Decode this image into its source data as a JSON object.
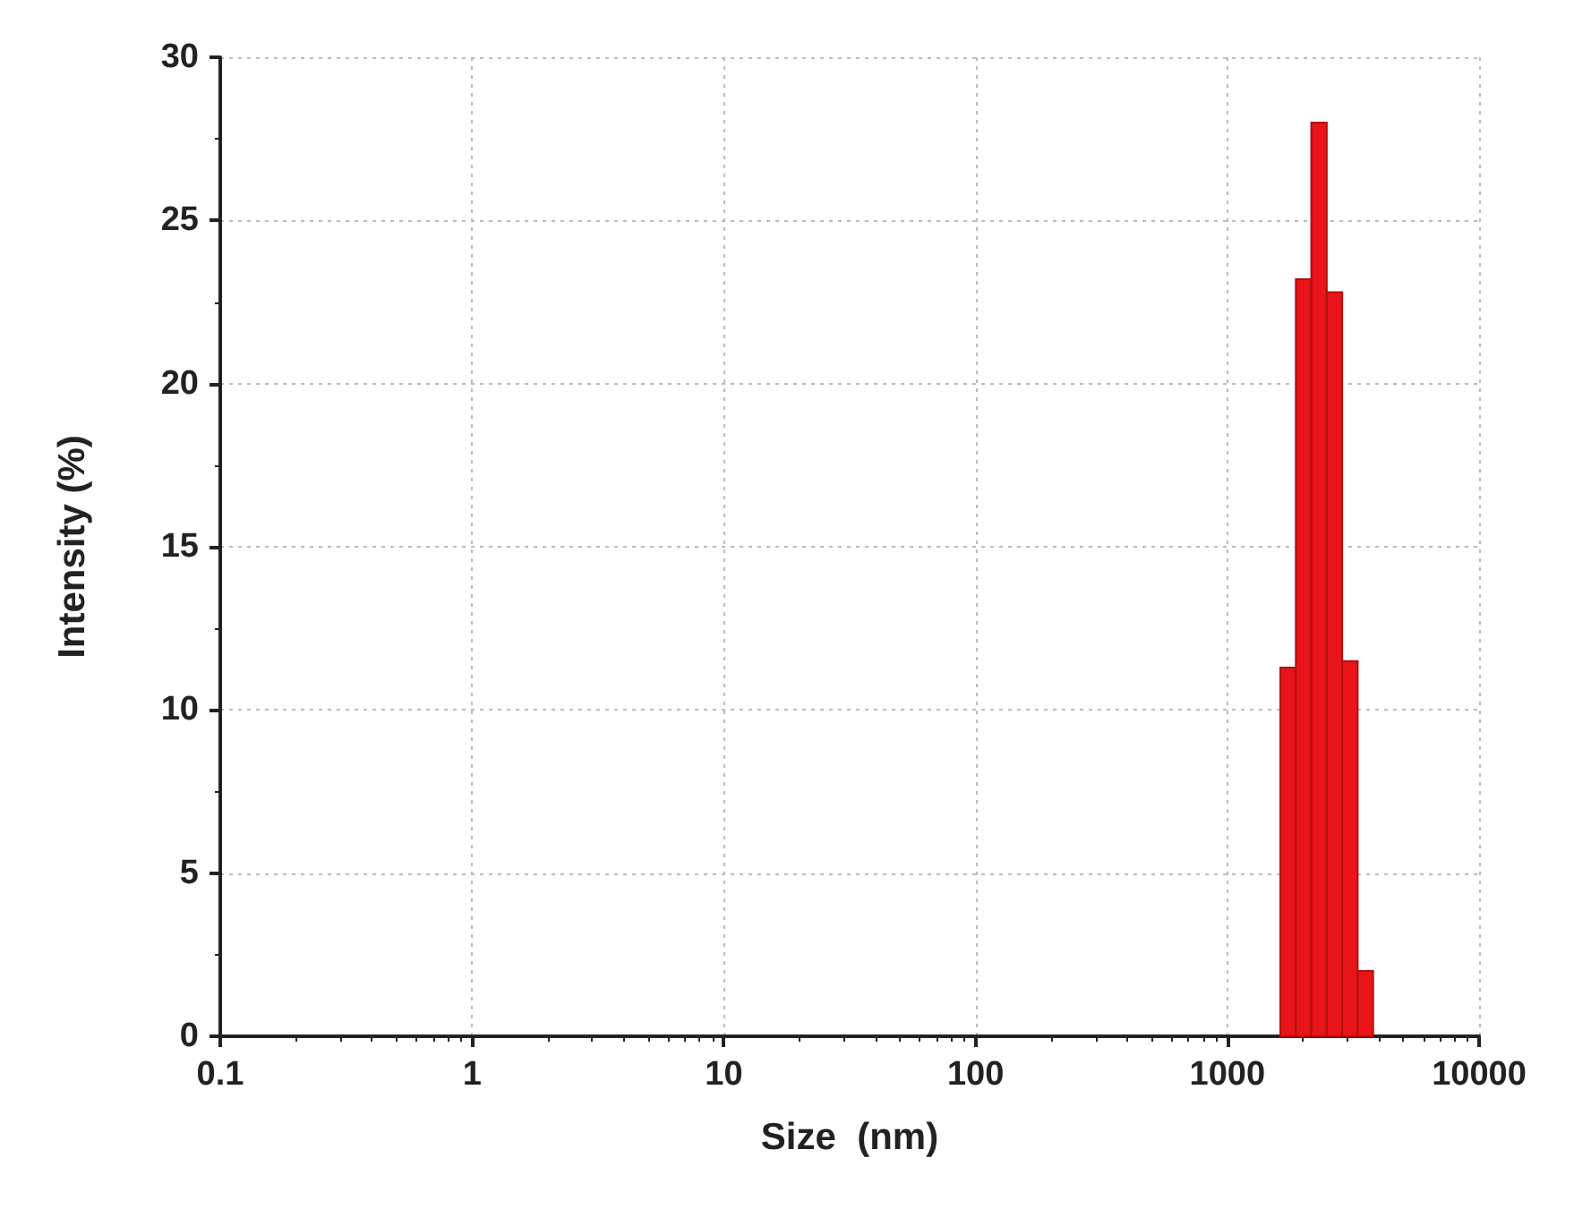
{
  "chart_data": {
    "type": "histogram",
    "xlabel": "Size  (nm)",
    "ylabel": "Intensity (%)",
    "bins": [
      1624,
      1871,
      2155,
      2483,
      2860,
      3295,
      3796
    ],
    "values": [
      11.3,
      23.2,
      28.0,
      22.8,
      11.5,
      2.0
    ],
    "color": "#e8141a",
    "log": "x",
    "xlim": [
      0.1,
      10000
    ],
    "xticks": [
      0.1,
      1,
      10,
      100,
      1000,
      10000
    ],
    "ylim": [
      0,
      30
    ],
    "yticks": [
      0,
      5,
      10,
      15,
      20,
      25,
      30
    ],
    "grid": true
  }
}
